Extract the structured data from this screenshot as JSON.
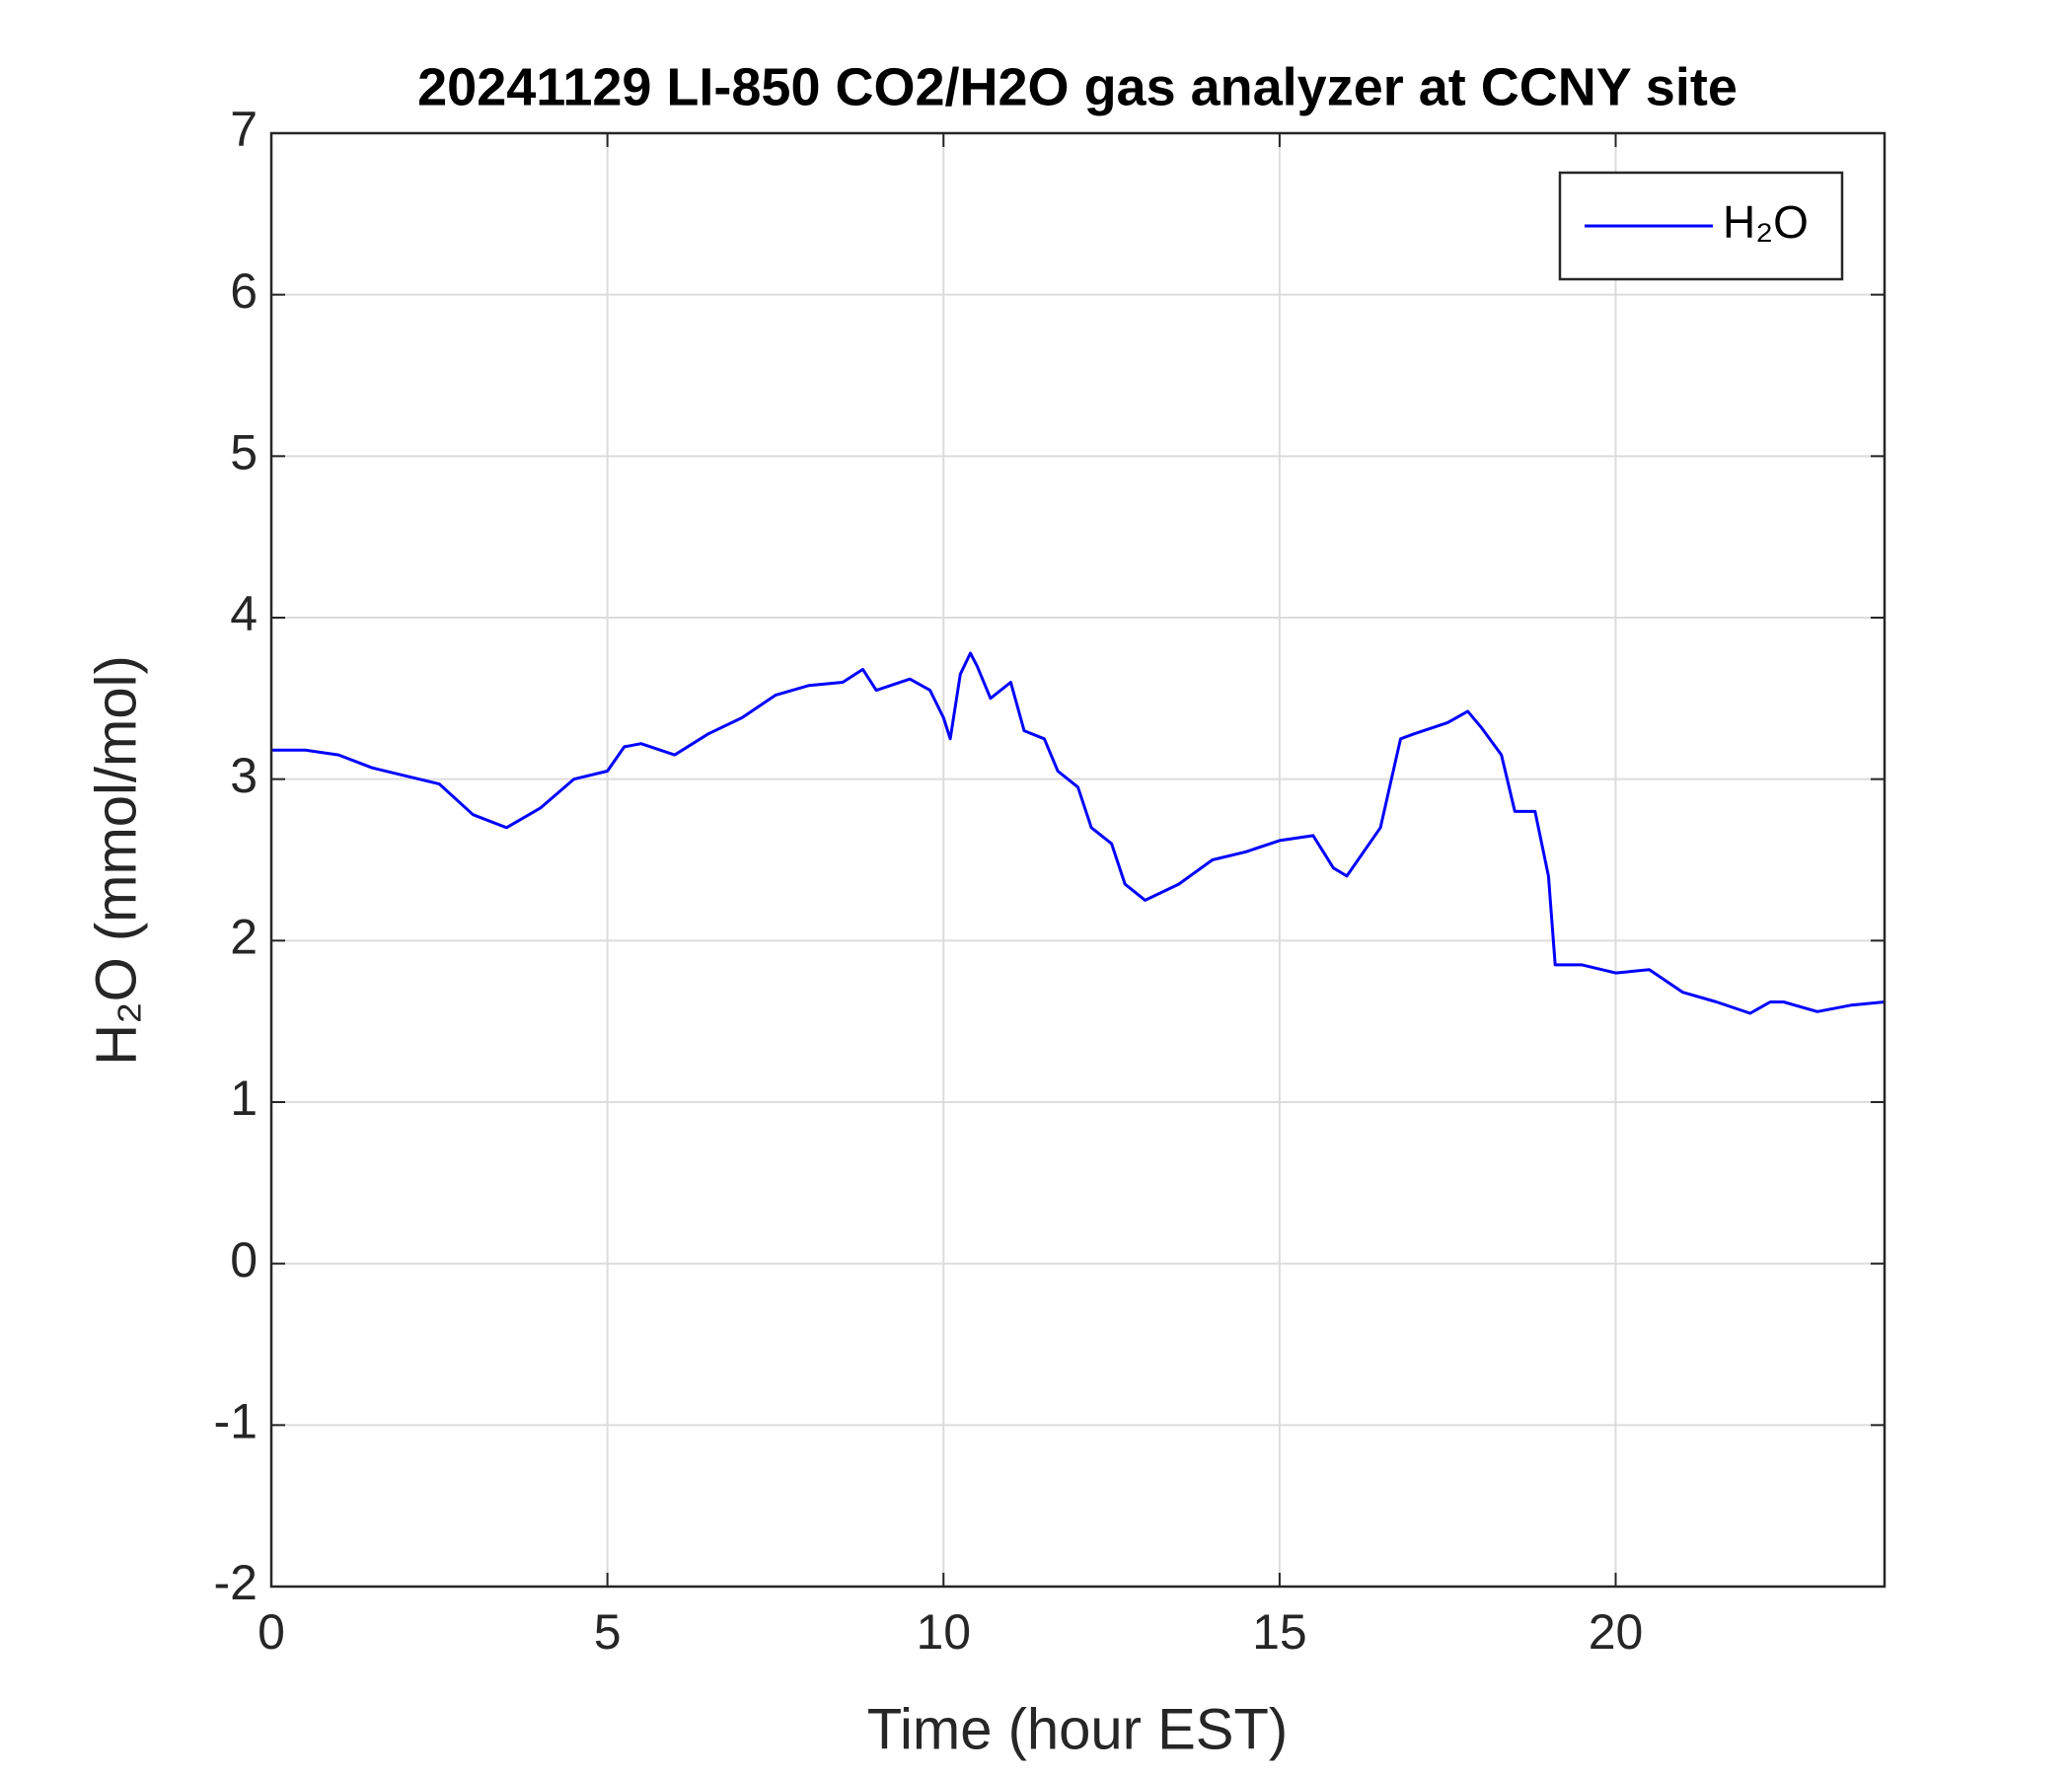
{
  "chart_data": {
    "type": "line",
    "title": "20241129 LI-850 CO2/H2O gas analyzer at CCNY site",
    "xlabel": "Time (hour EST)",
    "ylabel": "H₂O (mmol/mol)",
    "xlim": [
      0,
      24
    ],
    "xticks": [
      0,
      5,
      10,
      15,
      20
    ],
    "ylim": [
      -2,
      7
    ],
    "yticks": [
      -2,
      -1,
      0,
      1,
      2,
      3,
      4,
      5,
      6,
      7
    ],
    "grid": true,
    "legend": "upper-right",
    "x": [
      0,
      0.5,
      1,
      1.5,
      2,
      2.5,
      3,
      3.5,
      4,
      4.5,
      5,
      5.25,
      5.5,
      6,
      6.5,
      7,
      7.5,
      8,
      8.5,
      8.8,
      9,
      9.5,
      9.8,
      10,
      10.1,
      10.25,
      10.4,
      10.5,
      10.7,
      11,
      11.2,
      11.5,
      11.7,
      12,
      12.2,
      12.5,
      12.7,
      13,
      13.5,
      14,
      14.5,
      15,
      15.5,
      15.8,
      16,
      16.5,
      16.8,
      17,
      17.5,
      17.8,
      18,
      18.3,
      18.5,
      18.8,
      19,
      19.1,
      19.5,
      20,
      20.5,
      21,
      21.5,
      22,
      22.3,
      22.5,
      23,
      23.5,
      24
    ],
    "series": [
      {
        "name": "H₂O",
        "color": "#0000ff",
        "values": [
          3.18,
          3.18,
          3.15,
          3.07,
          3.02,
          2.97,
          2.78,
          2.7,
          2.82,
          3.0,
          3.05,
          3.2,
          3.22,
          3.15,
          3.28,
          3.38,
          3.52,
          3.58,
          3.6,
          3.68,
          3.55,
          3.62,
          3.55,
          3.38,
          3.25,
          3.65,
          3.78,
          3.7,
          3.5,
          3.6,
          3.3,
          3.25,
          3.05,
          2.95,
          2.7,
          2.6,
          2.35,
          2.25,
          2.35,
          2.5,
          2.55,
          2.62,
          2.65,
          2.45,
          2.4,
          2.7,
          3.25,
          3.28,
          3.35,
          3.42,
          3.32,
          3.15,
          2.8,
          2.8,
          2.4,
          1.85,
          1.85,
          1.8,
          1.82,
          1.68,
          1.62,
          1.55,
          1.62,
          1.62,
          1.56,
          1.6,
          1.62
        ]
      }
    ]
  }
}
